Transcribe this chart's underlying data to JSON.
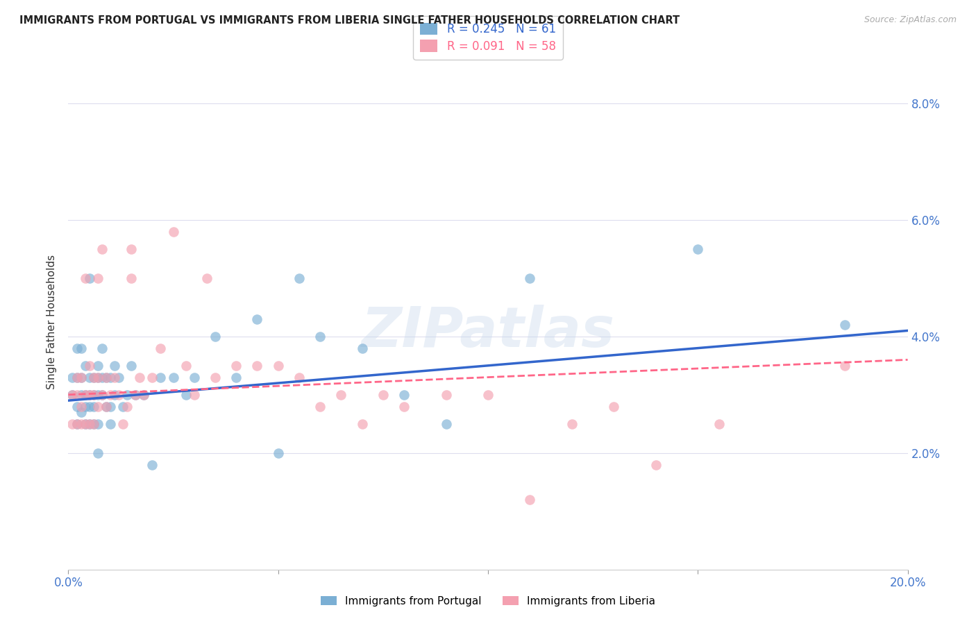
{
  "title": "IMMIGRANTS FROM PORTUGAL VS IMMIGRANTS FROM LIBERIA SINGLE FATHER HOUSEHOLDS CORRELATION CHART",
  "source": "Source: ZipAtlas.com",
  "ylabel": "Single Father Households",
  "x_min": 0.0,
  "x_max": 0.2,
  "y_min": 0.0,
  "y_max": 0.085,
  "x_ticks": [
    0.0,
    0.05,
    0.1,
    0.15,
    0.2
  ],
  "x_tick_labels": [
    "0.0%",
    "",
    "",
    "",
    "20.0%"
  ],
  "y_ticks": [
    0.0,
    0.02,
    0.04,
    0.06,
    0.08
  ],
  "y_tick_labels_right": [
    "",
    "2.0%",
    "4.0%",
    "6.0%",
    "8.0%"
  ],
  "legend_r_portugal": "0.245",
  "legend_n_portugal": "61",
  "legend_r_liberia": "0.091",
  "legend_n_liberia": "58",
  "color_portugal": "#7BAFD4",
  "color_liberia": "#F4A0B0",
  "color_trendline_portugal": "#3366CC",
  "color_trendline_liberia": "#FF6688",
  "tick_color": "#4477CC",
  "watermark": "ZIPatlas",
  "portugal_x": [
    0.001,
    0.001,
    0.002,
    0.002,
    0.002,
    0.002,
    0.003,
    0.003,
    0.003,
    0.003,
    0.004,
    0.004,
    0.004,
    0.004,
    0.005,
    0.005,
    0.005,
    0.005,
    0.005,
    0.006,
    0.006,
    0.006,
    0.006,
    0.007,
    0.007,
    0.007,
    0.007,
    0.007,
    0.008,
    0.008,
    0.008,
    0.009,
    0.009,
    0.01,
    0.01,
    0.01,
    0.011,
    0.011,
    0.012,
    0.013,
    0.014,
    0.015,
    0.016,
    0.018,
    0.02,
    0.022,
    0.025,
    0.028,
    0.03,
    0.035,
    0.04,
    0.045,
    0.05,
    0.055,
    0.06,
    0.07,
    0.08,
    0.09,
    0.11,
    0.15,
    0.185
  ],
  "portugal_y": [
    0.03,
    0.033,
    0.025,
    0.028,
    0.033,
    0.038,
    0.027,
    0.03,
    0.033,
    0.038,
    0.025,
    0.028,
    0.03,
    0.035,
    0.025,
    0.028,
    0.03,
    0.033,
    0.05,
    0.025,
    0.028,
    0.03,
    0.033,
    0.02,
    0.025,
    0.03,
    0.033,
    0.035,
    0.03,
    0.033,
    0.038,
    0.028,
    0.033,
    0.025,
    0.028,
    0.033,
    0.03,
    0.035,
    0.033,
    0.028,
    0.03,
    0.035,
    0.03,
    0.03,
    0.018,
    0.033,
    0.033,
    0.03,
    0.033,
    0.04,
    0.033,
    0.043,
    0.02,
    0.05,
    0.04,
    0.038,
    0.03,
    0.025,
    0.05,
    0.055,
    0.042
  ],
  "liberia_x": [
    0.001,
    0.001,
    0.002,
    0.002,
    0.002,
    0.003,
    0.003,
    0.003,
    0.004,
    0.004,
    0.004,
    0.005,
    0.005,
    0.005,
    0.006,
    0.006,
    0.006,
    0.007,
    0.007,
    0.007,
    0.008,
    0.008,
    0.009,
    0.009,
    0.01,
    0.011,
    0.012,
    0.013,
    0.014,
    0.015,
    0.015,
    0.016,
    0.017,
    0.018,
    0.02,
    0.022,
    0.025,
    0.028,
    0.03,
    0.033,
    0.035,
    0.04,
    0.045,
    0.05,
    0.055,
    0.06,
    0.065,
    0.07,
    0.075,
    0.08,
    0.09,
    0.1,
    0.11,
    0.12,
    0.13,
    0.14,
    0.155,
    0.185
  ],
  "liberia_y": [
    0.025,
    0.03,
    0.025,
    0.03,
    0.033,
    0.025,
    0.028,
    0.033,
    0.025,
    0.03,
    0.05,
    0.025,
    0.03,
    0.035,
    0.025,
    0.03,
    0.033,
    0.028,
    0.033,
    0.05,
    0.03,
    0.055,
    0.028,
    0.033,
    0.03,
    0.033,
    0.03,
    0.025,
    0.028,
    0.05,
    0.055,
    0.03,
    0.033,
    0.03,
    0.033,
    0.038,
    0.058,
    0.035,
    0.03,
    0.05,
    0.033,
    0.035,
    0.035,
    0.035,
    0.033,
    0.028,
    0.03,
    0.025,
    0.03,
    0.028,
    0.03,
    0.03,
    0.012,
    0.025,
    0.028,
    0.018,
    0.025,
    0.035
  ],
  "trendline_portugal_x0": 0.0,
  "trendline_portugal_x1": 0.2,
  "trendline_portugal_y0": 0.029,
  "trendline_portugal_y1": 0.041,
  "trendline_liberia_x0": 0.0,
  "trendline_liberia_x1": 0.2,
  "trendline_liberia_y0": 0.03,
  "trendline_liberia_y1": 0.036
}
